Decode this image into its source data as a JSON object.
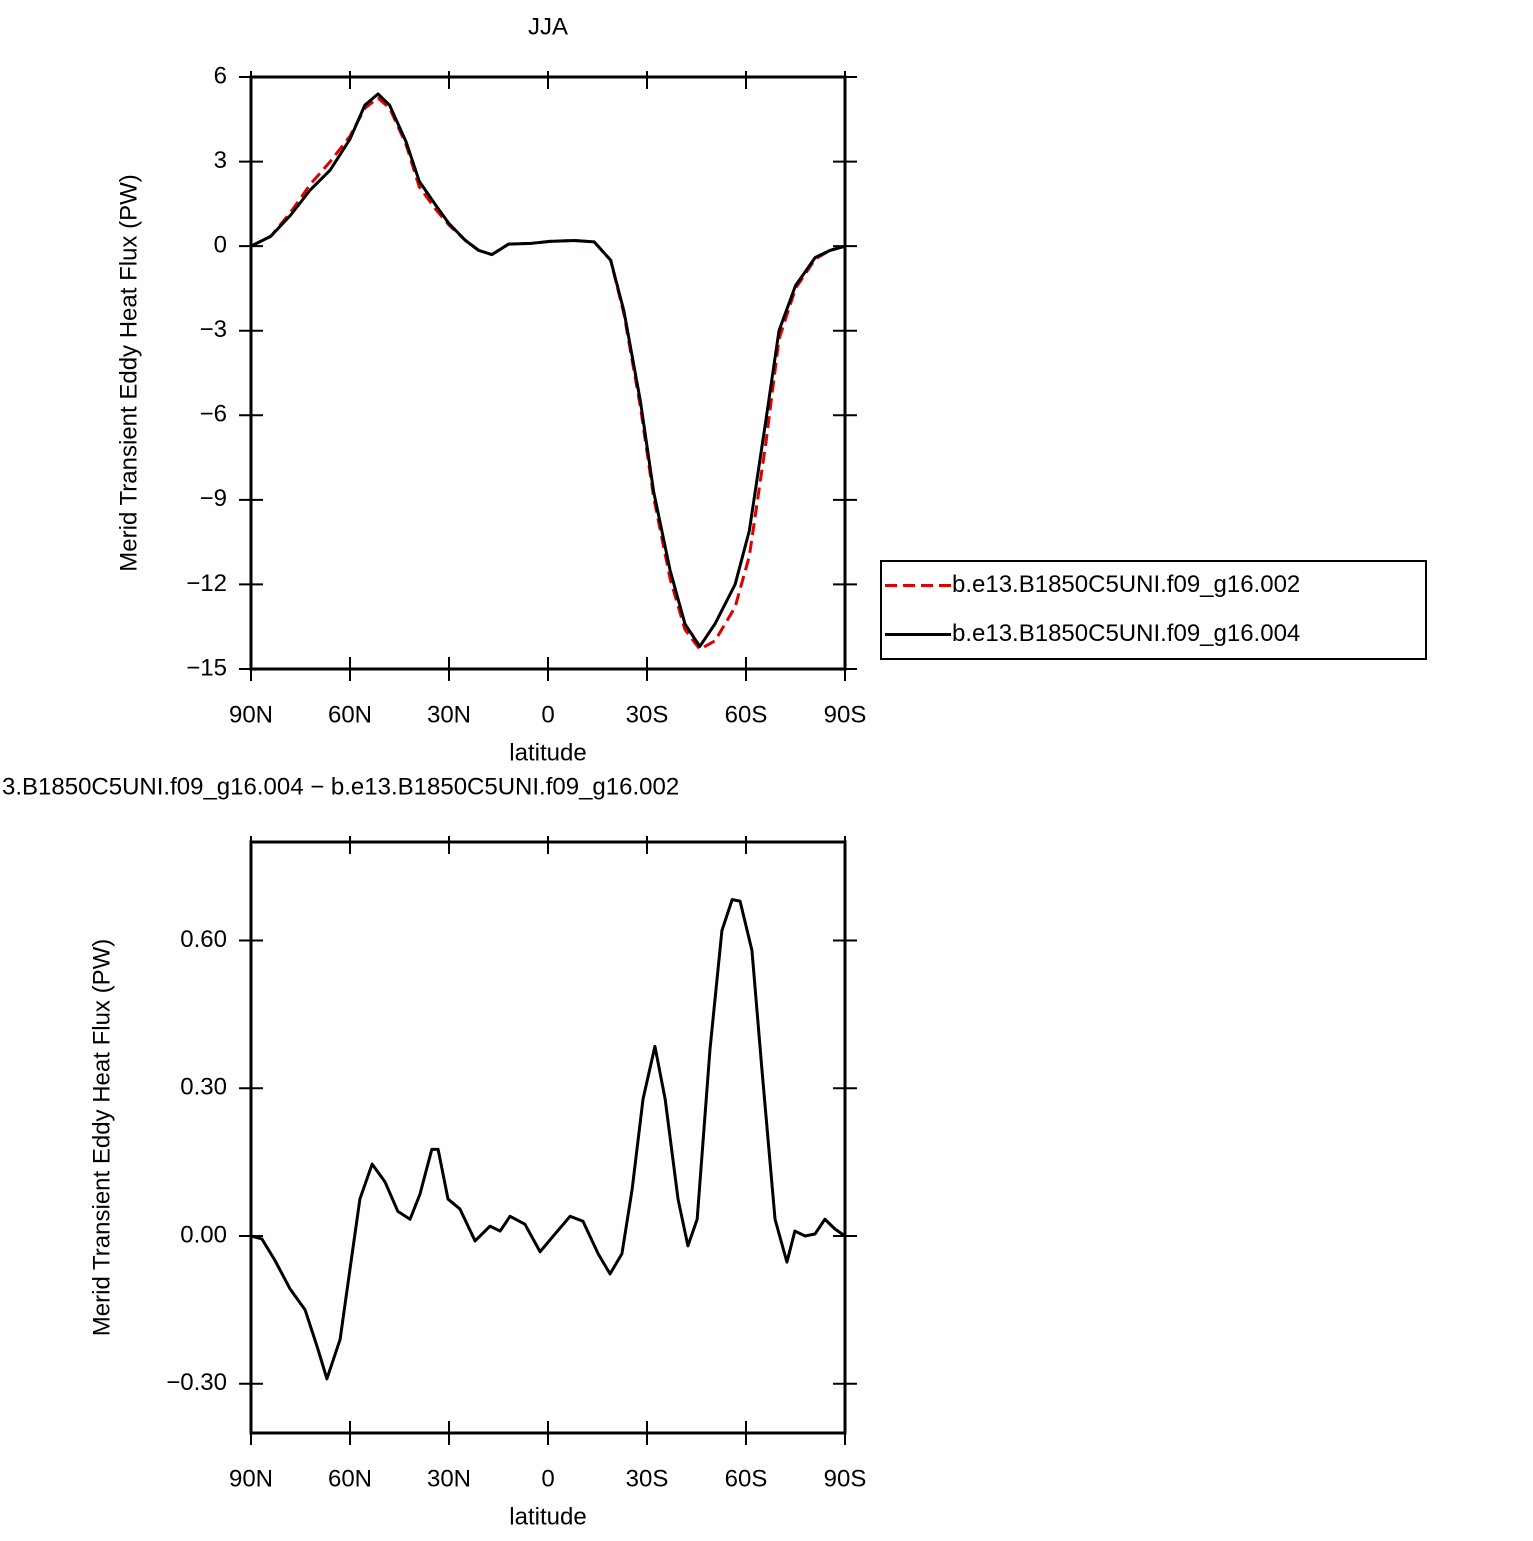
{
  "chart_data": [
    {
      "type": "line",
      "title": "JJA",
      "x_label": "latitude",
      "y_label": "Merid Transient Eddy Heat Flux (PW)",
      "x": [
        90,
        84,
        78,
        72,
        66,
        60,
        55.5,
        51.5,
        48,
        43,
        39,
        34,
        30,
        25,
        21,
        17,
        12,
        5,
        -0.6,
        -8,
        -14,
        -19,
        -23,
        -28,
        -32,
        -37,
        -41.5,
        -46,
        -50.6,
        -56.7,
        -61,
        -66,
        -70,
        -75,
        -81,
        -85.5,
        -90
      ],
      "series": [
        {
          "name": "b.e13.B1850C5UNI.f09_g16.002",
          "color": "#e00000",
          "dashed": true,
          "values": [
            0,
            0.35,
            1.2,
            2.2,
            3.0,
            3.9,
            4.9,
            5.25,
            4.9,
            3.6,
            2.1,
            1.3,
            0.75,
            0.2,
            -0.15,
            -0.3,
            0.07,
            0.1,
            0.17,
            0.2,
            0.15,
            -0.5,
            -2.4,
            -5.7,
            -8.9,
            -11.8,
            -13.6,
            -14.3,
            -14.0,
            -12.8,
            -11.0,
            -7.0,
            -3.3,
            -1.5,
            -0.45,
            -0.15,
            0
          ]
        },
        {
          "name": "b.e13.B1850C5UNI.f09_g16.004",
          "color": "#000000",
          "dashed": false,
          "values": [
            0,
            0.35,
            1.1,
            2.0,
            2.7,
            3.8,
            5.0,
            5.4,
            5.0,
            3.7,
            2.3,
            1.45,
            0.8,
            0.2,
            -0.15,
            -0.3,
            0.07,
            0.1,
            0.17,
            0.2,
            0.15,
            -0.5,
            -2.3,
            -5.5,
            -8.7,
            -11.5,
            -13.4,
            -14.2,
            -13.4,
            -12.0,
            -10.1,
            -6.2,
            -3.0,
            -1.4,
            -0.4,
            -0.15,
            0
          ]
        }
      ],
      "xlim": [
        90,
        -90
      ],
      "xticks": [
        {
          "value": 90,
          "label": "90N"
        },
        {
          "value": 60,
          "label": "60N"
        },
        {
          "value": 30,
          "label": "30N"
        },
        0,
        {
          "value": -30,
          "label": "30S"
        },
        {
          "value": -60,
          "label": "60S"
        },
        {
          "value": -90,
          "label": "90S"
        }
      ],
      "ylim": [
        -15,
        6
      ],
      "yticks": [
        {
          "value": -15,
          "label": "−15"
        },
        {
          "value": -12,
          "label": "−12"
        },
        {
          "value": -9,
          "label": "−9"
        },
        {
          "value": -6,
          "label": "−6"
        },
        {
          "value": -3,
          "label": "−3"
        },
        0,
        3,
        6
      ]
    },
    {
      "type": "line",
      "title": "3.B1850C5UNI.f09_g16.004 − b.e13.B1850C5UNI.f09_g16.002",
      "x_label": "latitude",
      "y_label": "Merid Transient Eddy Heat Flux (PW)",
      "x": [
        90,
        86.7,
        82.7,
        78.2,
        73.6,
        69.7,
        67,
        63,
        60,
        57,
        53.3,
        49.4,
        45.5,
        41.8,
        38.8,
        35.2,
        33.3,
        30.3,
        26.7,
        22.1,
        17.6,
        14.5,
        11.5,
        7,
        2.4,
        -2.1,
        -6.7,
        -10.6,
        -15.2,
        -18.8,
        -22.4,
        -25.5,
        -28.8,
        -32.4,
        -35.5,
        -39.4,
        -42.4,
        -45.2,
        -49.1,
        -52.7,
        -55.8,
        -58.2,
        -61.8,
        -64.8,
        -68.8,
        -72.4,
        -74.8,
        -77.9,
        -80.9,
        -83.9,
        -87,
        -90
      ],
      "series": [
        {
          "color": "#000000",
          "dashed": false,
          "values": [
            0,
            -0.006,
            -0.05,
            -0.107,
            -0.15,
            -0.23,
            -0.29,
            -0.21,
            -0.067,
            0.075,
            0.146,
            0.11,
            0.05,
            0.034,
            0.085,
            0.176,
            0.176,
            0.075,
            0.055,
            -0.01,
            0.02,
            0.01,
            0.04,
            0.024,
            -0.032,
            0.004,
            0.04,
            0.03,
            -0.036,
            -0.077,
            -0.036,
            0.095,
            0.278,
            0.385,
            0.278,
            0.075,
            -0.02,
            0.034,
            0.38,
            0.62,
            0.683,
            0.68,
            0.58,
            0.34,
            0.034,
            -0.053,
            0.01,
            0,
            0.004,
            0.034,
            0.014,
            0
          ]
        }
      ],
      "xlim": [
        90,
        -90
      ],
      "xticks": [
        {
          "value": 90,
          "label": "90N"
        },
        {
          "value": 60,
          "label": "60N"
        },
        {
          "value": 30,
          "label": "30N"
        },
        0,
        {
          "value": -30,
          "label": "30S"
        },
        {
          "value": -60,
          "label": "60S"
        },
        {
          "value": -90,
          "label": "90S"
        }
      ],
      "ylim": [
        -0.4,
        0.8
      ],
      "yticks": [
        {
          "value": -0.3,
          "label": "−0.30"
        },
        {
          "value": 0,
          "label": "0.00"
        },
        {
          "value": 0.3,
          "label": "0.30"
        },
        {
          "value": 0.6,
          "label": "0.60"
        }
      ]
    }
  ]
}
